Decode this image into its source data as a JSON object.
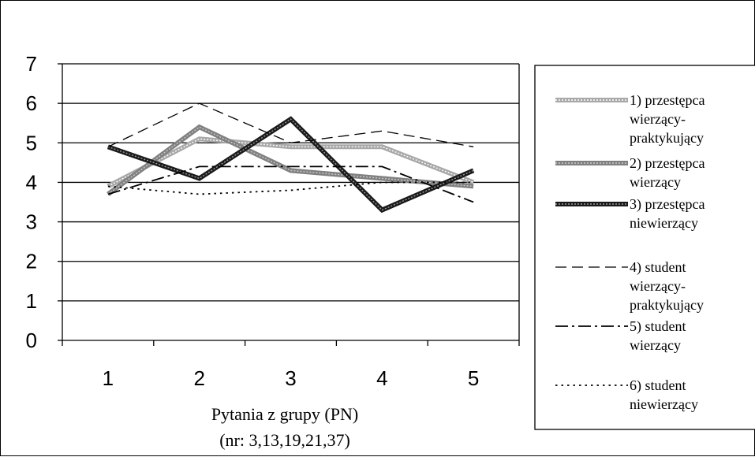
{
  "chart_data": {
    "type": "line",
    "title": "",
    "xlabel": "Pytania z grupy (PN)",
    "xlabel_line2": "(nr: 3,13,19,21,37)",
    "ylabel": "",
    "categories": [
      "1",
      "2",
      "3",
      "4",
      "5"
    ],
    "ylim": [
      0,
      7
    ],
    "yticks": [
      "0",
      "1",
      "2",
      "3",
      "4",
      "5",
      "6",
      "7"
    ],
    "grid": true,
    "legend_position": "right",
    "series": [
      {
        "name": "1) przestępca wierzący-praktykujący",
        "legend_lines": [
          "1) przestępca",
          "wierzący-",
          "praktykujący"
        ],
        "values": [
          3.9,
          5.1,
          4.9,
          4.9,
          4.0
        ],
        "style": "hatched-light"
      },
      {
        "name": "2) przestępca wierzący",
        "legend_lines": [
          "2) przestępca",
          "wierzący"
        ],
        "values": [
          3.7,
          5.4,
          4.3,
          4.1,
          3.9
        ],
        "style": "hatched-gray"
      },
      {
        "name": "3) przestępca niewierzący",
        "legend_lines": [
          "3) przestępca",
          "niewierzący"
        ],
        "values": [
          4.9,
          4.1,
          5.6,
          3.3,
          4.3
        ],
        "style": "hatched-dark"
      },
      {
        "name": "4) student wierzący-praktykujący",
        "legend_lines": [
          "4) student",
          "wierzący-",
          "praktykujący"
        ],
        "values": [
          4.9,
          6.0,
          5.0,
          5.3,
          4.9
        ],
        "style": "dashed"
      },
      {
        "name": "5) student wierzący",
        "legend_lines": [
          "5) student",
          "wierzący"
        ],
        "values": [
          3.7,
          4.4,
          4.4,
          4.4,
          3.5
        ],
        "style": "dash-dot"
      },
      {
        "name": "6) student niewierzący",
        "legend_lines": [
          "6) student",
          "niewierzący"
        ],
        "values": [
          3.9,
          3.7,
          3.8,
          4.0,
          4.0
        ],
        "style": "dotted"
      }
    ]
  }
}
